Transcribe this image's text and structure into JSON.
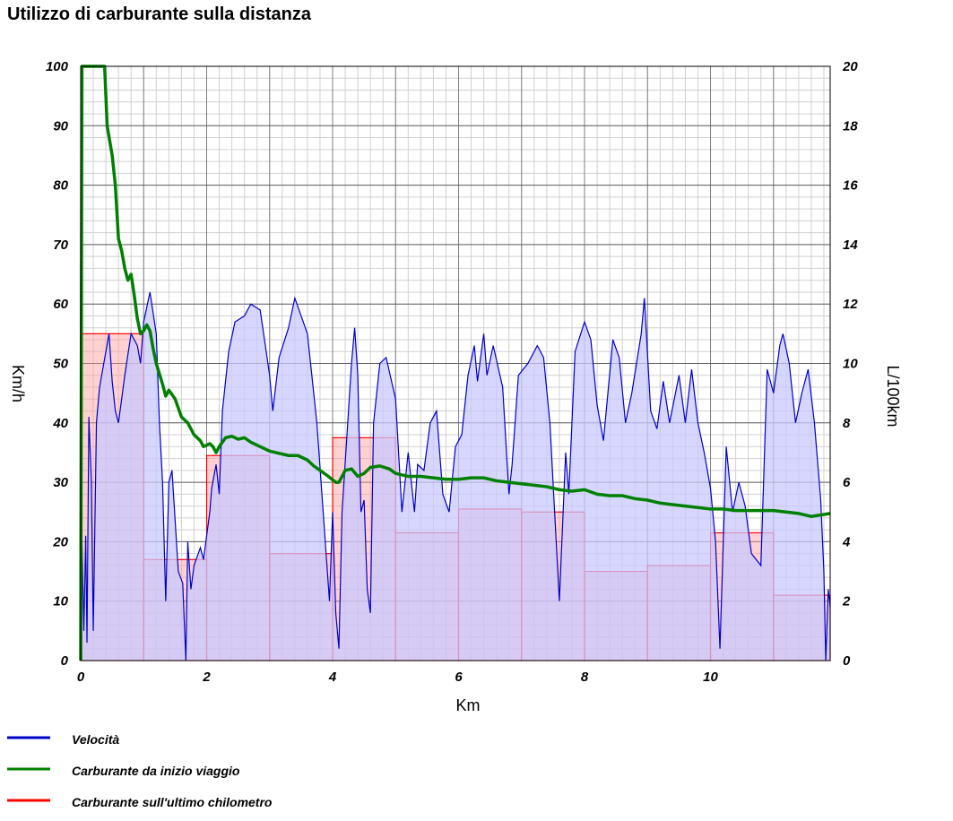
{
  "chart_data": {
    "type": "line",
    "title": "Utilizzo di carburante sulla distanza",
    "xlabel": "Km",
    "ylabel_left": "Km/h",
    "ylabel_right": "L/100km",
    "xlim": [
      0,
      11.9
    ],
    "ylim_left": [
      0,
      100
    ],
    "ylim_right": [
      0,
      20
    ],
    "x_ticks": [
      0,
      2,
      4,
      6,
      8,
      10
    ],
    "x_tick_labels": [
      "0",
      "2",
      "4",
      "6",
      "8",
      "10"
    ],
    "y_left_ticks": [
      0,
      10,
      20,
      30,
      40,
      50,
      60,
      70,
      80,
      90,
      100
    ],
    "y_left_tick_labels": [
      "0",
      "10",
      "20",
      "30",
      "40",
      "50",
      "60",
      "70",
      "80",
      "90",
      "100"
    ],
    "y_right_ticks": [
      0,
      2,
      4,
      6,
      8,
      10,
      12,
      14,
      16,
      18,
      20
    ],
    "y_right_tick_labels": [
      "0",
      "2",
      "4",
      "6",
      "8",
      "10",
      "12",
      "14",
      "16",
      "18",
      "20"
    ],
    "grid": true,
    "legend_position": "bottom-left",
    "series": [
      {
        "name": "Velocità",
        "axis": "left",
        "color": "#0000cc",
        "fill": "#c8c8ff",
        "points": [
          [
            0.0,
            0
          ],
          [
            0.02,
            20
          ],
          [
            0.05,
            5
          ],
          [
            0.08,
            21
          ],
          [
            0.1,
            3
          ],
          [
            0.13,
            41
          ],
          [
            0.17,
            30
          ],
          [
            0.2,
            5
          ],
          [
            0.25,
            40
          ],
          [
            0.3,
            46
          ],
          [
            0.45,
            55
          ],
          [
            0.5,
            47
          ],
          [
            0.55,
            42
          ],
          [
            0.6,
            40
          ],
          [
            0.7,
            48
          ],
          [
            0.8,
            55
          ],
          [
            0.9,
            53
          ],
          [
            0.95,
            50
          ],
          [
            1.0,
            57
          ],
          [
            1.1,
            62
          ],
          [
            1.2,
            55
          ],
          [
            1.25,
            40
          ],
          [
            1.3,
            30
          ],
          [
            1.35,
            10
          ],
          [
            1.4,
            30
          ],
          [
            1.45,
            32
          ],
          [
            1.55,
            15
          ],
          [
            1.62,
            13
          ],
          [
            1.67,
            0
          ],
          [
            1.7,
            20
          ],
          [
            1.75,
            12
          ],
          [
            1.8,
            16
          ],
          [
            1.9,
            19
          ],
          [
            1.95,
            17
          ],
          [
            2.05,
            25
          ],
          [
            2.08,
            29
          ],
          [
            2.15,
            33
          ],
          [
            2.2,
            28
          ],
          [
            2.25,
            42
          ],
          [
            2.35,
            52
          ],
          [
            2.45,
            57
          ],
          [
            2.6,
            58
          ],
          [
            2.7,
            60
          ],
          [
            2.85,
            59
          ],
          [
            3.0,
            48
          ],
          [
            3.05,
            42
          ],
          [
            3.15,
            51
          ],
          [
            3.3,
            56
          ],
          [
            3.4,
            61
          ],
          [
            3.5,
            58
          ],
          [
            3.6,
            55
          ],
          [
            3.75,
            40
          ],
          [
            3.85,
            25
          ],
          [
            3.95,
            10
          ],
          [
            4.0,
            25
          ],
          [
            4.05,
            8
          ],
          [
            4.1,
            2
          ],
          [
            4.15,
            25
          ],
          [
            4.3,
            50
          ],
          [
            4.35,
            56
          ],
          [
            4.4,
            48
          ],
          [
            4.45,
            25
          ],
          [
            4.5,
            27
          ],
          [
            4.55,
            12
          ],
          [
            4.6,
            8
          ],
          [
            4.65,
            40
          ],
          [
            4.75,
            50
          ],
          [
            4.85,
            51
          ],
          [
            5.0,
            44
          ],
          [
            5.1,
            25
          ],
          [
            5.2,
            35
          ],
          [
            5.3,
            25
          ],
          [
            5.35,
            33
          ],
          [
            5.45,
            32
          ],
          [
            5.55,
            40
          ],
          [
            5.65,
            42
          ],
          [
            5.75,
            28
          ],
          [
            5.85,
            25
          ],
          [
            5.95,
            36
          ],
          [
            6.05,
            38
          ],
          [
            6.15,
            48
          ],
          [
            6.25,
            53
          ],
          [
            6.3,
            47
          ],
          [
            6.4,
            55
          ],
          [
            6.45,
            48
          ],
          [
            6.55,
            53
          ],
          [
            6.7,
            46
          ],
          [
            6.8,
            28
          ],
          [
            6.85,
            33
          ],
          [
            6.95,
            48
          ],
          [
            7.1,
            50
          ],
          [
            7.25,
            53
          ],
          [
            7.35,
            51
          ],
          [
            7.45,
            40
          ],
          [
            7.55,
            20
          ],
          [
            7.6,
            10
          ],
          [
            7.7,
            35
          ],
          [
            7.75,
            28
          ],
          [
            7.85,
            52
          ],
          [
            8.0,
            57
          ],
          [
            8.1,
            54
          ],
          [
            8.2,
            43
          ],
          [
            8.3,
            37
          ],
          [
            8.45,
            54
          ],
          [
            8.55,
            51
          ],
          [
            8.65,
            40
          ],
          [
            8.75,
            45
          ],
          [
            8.9,
            55
          ],
          [
            8.95,
            61
          ],
          [
            9.05,
            42
          ],
          [
            9.15,
            39
          ],
          [
            9.25,
            47
          ],
          [
            9.35,
            40
          ],
          [
            9.5,
            48
          ],
          [
            9.6,
            40
          ],
          [
            9.7,
            49
          ],
          [
            9.8,
            40
          ],
          [
            9.9,
            35
          ],
          [
            10.0,
            29
          ],
          [
            10.08,
            20
          ],
          [
            10.15,
            2
          ],
          [
            10.25,
            36
          ],
          [
            10.35,
            25
          ],
          [
            10.45,
            30
          ],
          [
            10.55,
            26
          ],
          [
            10.65,
            18
          ],
          [
            10.8,
            16
          ],
          [
            10.9,
            49
          ],
          [
            11.0,
            45
          ],
          [
            11.1,
            53
          ],
          [
            11.15,
            55
          ],
          [
            11.25,
            50
          ],
          [
            11.35,
            40
          ],
          [
            11.45,
            45
          ],
          [
            11.55,
            49
          ],
          [
            11.65,
            40
          ],
          [
            11.75,
            27
          ],
          [
            11.8,
            15
          ],
          [
            11.83,
            0
          ],
          [
            11.87,
            12
          ],
          [
            11.9,
            9
          ]
        ]
      },
      {
        "name": "Carburante da inizio viaggio",
        "axis": "right",
        "color": "#008000",
        "points": [
          [
            0.0,
            0
          ],
          [
            0.02,
            20
          ],
          [
            0.05,
            20
          ],
          [
            0.3,
            20
          ],
          [
            0.38,
            20
          ],
          [
            0.42,
            18
          ],
          [
            0.5,
            17
          ],
          [
            0.55,
            16
          ],
          [
            0.6,
            14.2
          ],
          [
            0.65,
            13.8
          ],
          [
            0.7,
            13.2
          ],
          [
            0.75,
            12.8
          ],
          [
            0.8,
            13
          ],
          [
            0.85,
            12.3
          ],
          [
            0.9,
            11.5
          ],
          [
            0.95,
            11
          ],
          [
            1.0,
            11.1
          ],
          [
            1.05,
            11.3
          ],
          [
            1.1,
            11.1
          ],
          [
            1.15,
            10.5
          ],
          [
            1.2,
            10
          ],
          [
            1.3,
            9.3
          ],
          [
            1.35,
            8.9
          ],
          [
            1.4,
            9.1
          ],
          [
            1.5,
            8.8
          ],
          [
            1.6,
            8.2
          ],
          [
            1.7,
            8
          ],
          [
            1.8,
            7.6
          ],
          [
            1.9,
            7.4
          ],
          [
            1.95,
            7.2
          ],
          [
            2.05,
            7.3
          ],
          [
            2.1,
            7.2
          ],
          [
            2.15,
            7
          ],
          [
            2.2,
            7.2
          ],
          [
            2.3,
            7.5
          ],
          [
            2.4,
            7.55
          ],
          [
            2.5,
            7.45
          ],
          [
            2.6,
            7.5
          ],
          [
            2.7,
            7.35
          ],
          [
            2.8,
            7.25
          ],
          [
            3.0,
            7.05
          ],
          [
            3.1,
            7.0
          ],
          [
            3.3,
            6.9
          ],
          [
            3.45,
            6.9
          ],
          [
            3.6,
            6.75
          ],
          [
            3.7,
            6.55
          ],
          [
            3.8,
            6.4
          ],
          [
            3.9,
            6.25
          ],
          [
            4.05,
            6.0
          ],
          [
            4.1,
            6.0
          ],
          [
            4.2,
            6.4
          ],
          [
            4.3,
            6.45
          ],
          [
            4.4,
            6.2
          ],
          [
            4.5,
            6.3
          ],
          [
            4.6,
            6.5
          ],
          [
            4.75,
            6.55
          ],
          [
            4.9,
            6.45
          ],
          [
            5.0,
            6.3
          ],
          [
            5.2,
            6.2
          ],
          [
            5.4,
            6.2
          ],
          [
            5.6,
            6.15
          ],
          [
            5.8,
            6.1
          ],
          [
            6.0,
            6.1
          ],
          [
            6.2,
            6.15
          ],
          [
            6.4,
            6.15
          ],
          [
            6.6,
            6.05
          ],
          [
            6.8,
            6.0
          ],
          [
            7.0,
            5.95
          ],
          [
            7.2,
            5.9
          ],
          [
            7.4,
            5.85
          ],
          [
            7.6,
            5.75
          ],
          [
            7.8,
            5.7
          ],
          [
            8.0,
            5.75
          ],
          [
            8.2,
            5.6
          ],
          [
            8.4,
            5.55
          ],
          [
            8.6,
            5.55
          ],
          [
            8.8,
            5.45
          ],
          [
            9.0,
            5.4
          ],
          [
            9.2,
            5.3
          ],
          [
            9.4,
            5.25
          ],
          [
            9.6,
            5.2
          ],
          [
            9.8,
            5.15
          ],
          [
            10.0,
            5.1
          ],
          [
            10.2,
            5.1
          ],
          [
            10.4,
            5.05
          ],
          [
            10.6,
            5.05
          ],
          [
            10.8,
            5.05
          ],
          [
            11.0,
            5.05
          ],
          [
            11.2,
            5.0
          ],
          [
            11.4,
            4.95
          ],
          [
            11.6,
            4.85
          ],
          [
            11.9,
            4.95
          ]
        ]
      },
      {
        "name": "Carburante sull'ultimo chilometro",
        "axis": "right",
        "color": "#ff0000",
        "fill": "#ff9999",
        "bins": [
          {
            "x0": 0,
            "x1": 1,
            "value": 11
          },
          {
            "x0": 1,
            "x1": 2,
            "value": 3.4
          },
          {
            "x0": 2,
            "x1": 3,
            "value": 6.9
          },
          {
            "x0": 3,
            "x1": 4,
            "value": 3.6
          },
          {
            "x0": 4,
            "x1": 5,
            "value": 7.5
          },
          {
            "x0": 5,
            "x1": 6,
            "value": 4.3
          },
          {
            "x0": 6,
            "x1": 7,
            "value": 5.1
          },
          {
            "x0": 7,
            "x1": 8,
            "value": 5.0
          },
          {
            "x0": 8,
            "x1": 9,
            "value": 3.0
          },
          {
            "x0": 9,
            "x1": 10,
            "value": 3.2
          },
          {
            "x0": 10,
            "x1": 11,
            "value": 4.3
          },
          {
            "x0": 11,
            "x1": 11.9,
            "value": 2.2
          }
        ]
      }
    ]
  }
}
